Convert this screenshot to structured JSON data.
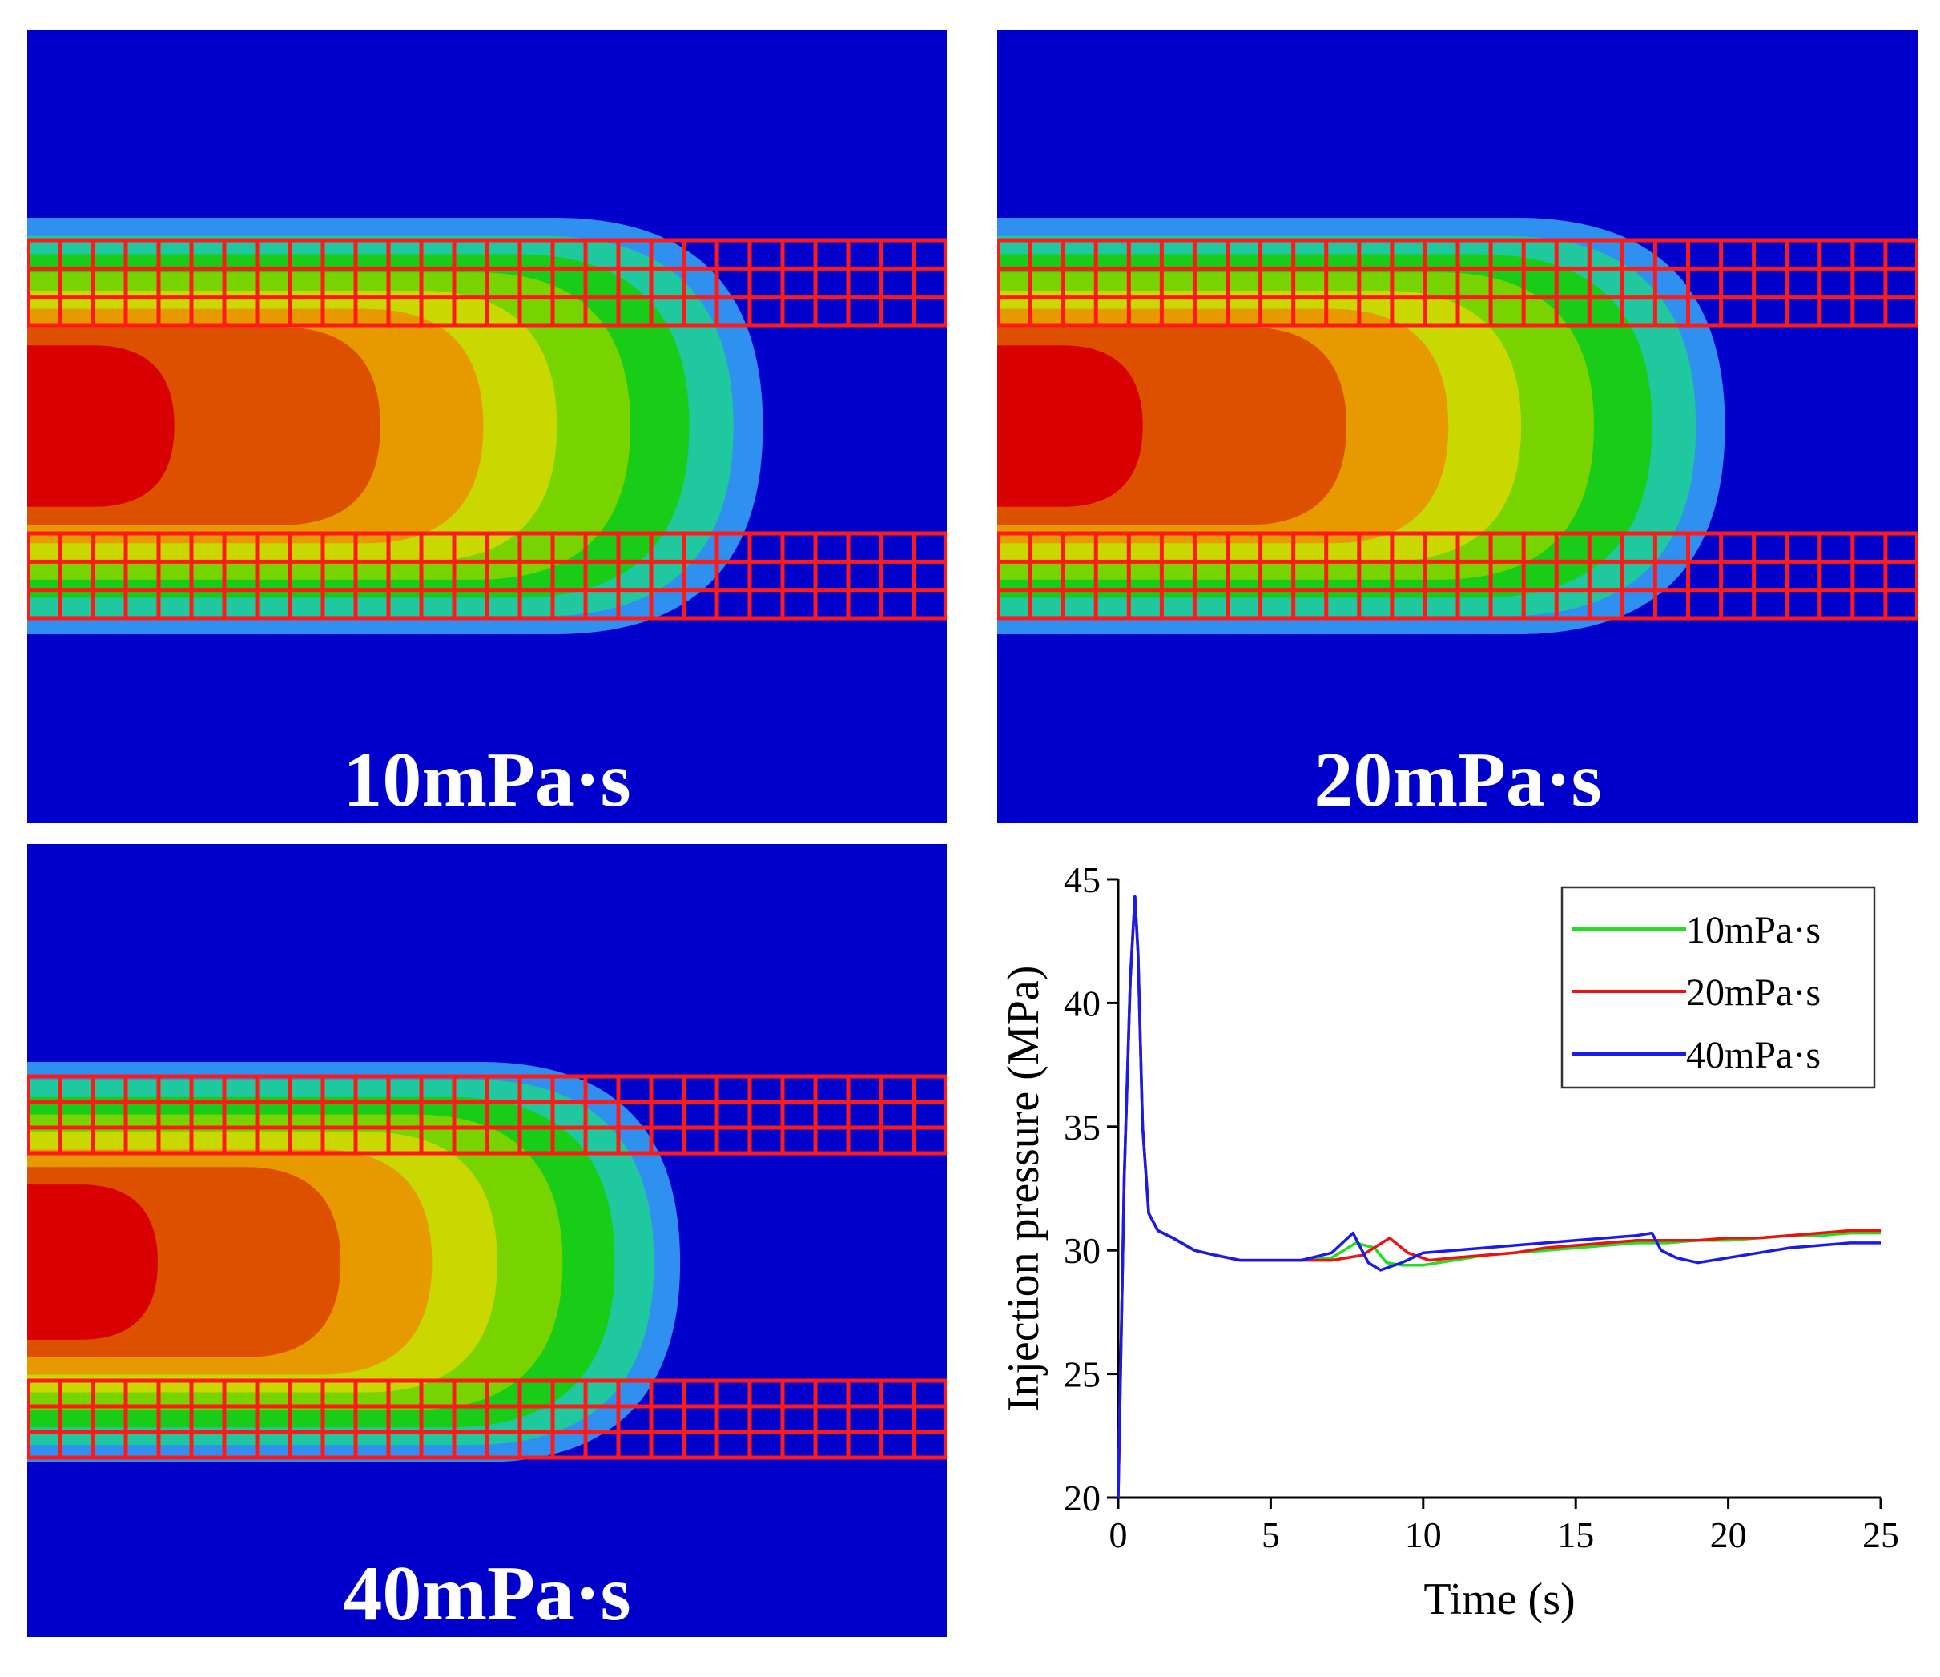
{
  "panels": [
    {
      "label": "10mPa·s",
      "front": 0.8
    },
    {
      "label": "20mPa·s",
      "front": 0.79
    },
    {
      "label": "40mPa·s",
      "front": 0.71
    }
  ],
  "colors": {
    "background": "#0000cc",
    "grid": "#ff1a1a",
    "contours": [
      "#d80000",
      "#dc5000",
      "#e69a00",
      "#c8d800",
      "#78d400",
      "#18cc18",
      "#20c8a0",
      "#3090f0"
    ],
    "series": [
      "#22dd22",
      "#ee1111",
      "#1a1aee"
    ]
  },
  "chart_data": {
    "type": "line",
    "title": "",
    "xlabel": "Time (s)",
    "ylabel": "Injection pressure (MPa)",
    "xlim": [
      0,
      25
    ],
    "ylim": [
      20,
      45
    ],
    "xticks": [
      0,
      5,
      10,
      15,
      20,
      25
    ],
    "yticks": [
      20,
      25,
      30,
      35,
      40,
      45
    ],
    "xtick_labels": [
      "0",
      "5",
      "10",
      "15",
      "20",
      "25"
    ],
    "ytick_labels": [
      "20",
      "25",
      "30",
      "35",
      "40",
      "45"
    ],
    "legend_position": "top-right",
    "series": [
      {
        "name": "10mPa·s",
        "color": "#22dd22",
        "x": [
          0,
          0.2,
          0.4,
          0.55,
          0.65,
          0.8,
          1.0,
          1.3,
          1.8,
          2.5,
          3.2,
          4,
          5,
          6,
          7,
          7.8,
          8.4,
          8.8,
          9.3,
          10,
          11,
          12,
          13,
          14,
          15,
          16,
          17,
          18,
          19,
          20,
          21,
          22,
          23,
          24,
          25
        ],
        "y": [
          20,
          33,
          41,
          44.3,
          42,
          35,
          31.5,
          30.8,
          30.5,
          30.0,
          29.8,
          29.6,
          29.6,
          29.6,
          29.7,
          30.3,
          30.1,
          29.5,
          29.4,
          29.4,
          29.6,
          29.8,
          29.9,
          30.0,
          30.1,
          30.2,
          30.3,
          30.3,
          30.4,
          30.4,
          30.5,
          30.6,
          30.6,
          30.7,
          30.7
        ]
      },
      {
        "name": "20mPa·s",
        "color": "#ee1111",
        "x": [
          0,
          0.2,
          0.4,
          0.55,
          0.65,
          0.8,
          1.0,
          1.3,
          1.8,
          2.5,
          3.2,
          4,
          5,
          6,
          7,
          8,
          8.9,
          9.5,
          10.2,
          11,
          12,
          13,
          14,
          15,
          16,
          17,
          18,
          19,
          20,
          21,
          22,
          23,
          24,
          25
        ],
        "y": [
          20,
          33,
          41,
          44.3,
          42,
          35,
          31.5,
          30.8,
          30.5,
          30.0,
          29.8,
          29.6,
          29.6,
          29.6,
          29.6,
          29.8,
          30.5,
          29.9,
          29.6,
          29.7,
          29.8,
          29.9,
          30.1,
          30.2,
          30.3,
          30.4,
          30.4,
          30.4,
          30.5,
          30.5,
          30.6,
          30.7,
          30.8,
          30.8
        ]
      },
      {
        "name": "40mPa·s",
        "color": "#1a1aee",
        "x": [
          0,
          0.2,
          0.4,
          0.55,
          0.65,
          0.8,
          1.0,
          1.3,
          1.8,
          2.5,
          3.2,
          4,
          5,
          6,
          7,
          7.7,
          8.2,
          8.6,
          9.3,
          10,
          11,
          12,
          13,
          14,
          15,
          16,
          17,
          17.5,
          17.8,
          18.3,
          19,
          20,
          21,
          22,
          23,
          24,
          25
        ],
        "y": [
          20,
          33,
          41,
          44.3,
          42,
          35,
          31.5,
          30.8,
          30.5,
          30.0,
          29.8,
          29.6,
          29.6,
          29.6,
          29.9,
          30.7,
          29.5,
          29.2,
          29.5,
          29.9,
          30.0,
          30.1,
          30.2,
          30.3,
          30.4,
          30.5,
          30.6,
          30.7,
          30.0,
          29.7,
          29.5,
          29.7,
          29.9,
          30.1,
          30.2,
          30.3,
          30.3
        ]
      }
    ]
  }
}
